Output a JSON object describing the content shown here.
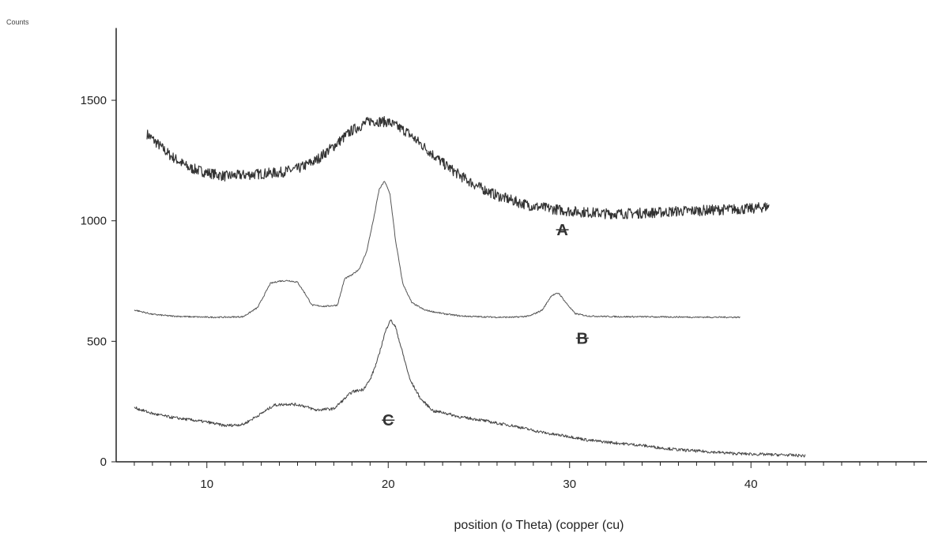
{
  "chart_data": {
    "type": "line",
    "title": "",
    "ylabel": "Counts",
    "xlabel": "position (o Theta) (copper (cu)",
    "xlim": [
      5,
      50
    ],
    "ylim": [
      0,
      1800
    ],
    "x_ticks": [
      10,
      20,
      30,
      40
    ],
    "y_ticks": [
      0,
      500,
      1000,
      1500
    ],
    "grid": false,
    "legend": "none",
    "annotations": [
      {
        "text": "A",
        "x": 29.6,
        "y": 940
      },
      {
        "text": "B",
        "x": 30.7,
        "y": 490
      },
      {
        "text": "C",
        "x": 20,
        "y": 150
      }
    ],
    "series": [
      {
        "color": "#333333",
        "noise": 22,
        "x": [
          6.7,
          8,
          9,
          10,
          11,
          12,
          13,
          14,
          15,
          16,
          17,
          18,
          19,
          20,
          21,
          22,
          23,
          24,
          25,
          26,
          27,
          28,
          29,
          30,
          31,
          32,
          33,
          34,
          35,
          36,
          37,
          38,
          39,
          40,
          41
        ],
        "y": [
          1360,
          1270,
          1220,
          1200,
          1185,
          1190,
          1195,
          1200,
          1215,
          1250,
          1310,
          1375,
          1415,
          1410,
          1370,
          1305,
          1240,
          1185,
          1140,
          1105,
          1080,
          1060,
          1050,
          1040,
          1035,
          1030,
          1030,
          1032,
          1035,
          1040,
          1042,
          1045,
          1048,
          1050,
          1060
        ]
      },
      {
        "color": "#555555",
        "noise": 3,
        "x": [
          6,
          7,
          8,
          9,
          10,
          11,
          12,
          12.8,
          13.5,
          14,
          14.5,
          15,
          15.4,
          15.8,
          16.5,
          17.2,
          17.6,
          18,
          18.4,
          18.8,
          19.2,
          19.5,
          19.8,
          20.1,
          20.4,
          20.8,
          21.3,
          22,
          23,
          24,
          25,
          26,
          27,
          27.8,
          28.5,
          29,
          29.4,
          29.8,
          30.3,
          31,
          32,
          33,
          34,
          35,
          36,
          37,
          38,
          39.4
        ],
        "y": [
          630,
          612,
          605,
          602,
          600,
          600,
          602,
          640,
          740,
          750,
          752,
          745,
          700,
          650,
          645,
          650,
          760,
          775,
          800,
          870,
          1010,
          1130,
          1165,
          1110,
          920,
          740,
          660,
          630,
          615,
          605,
          602,
          600,
          600,
          605,
          630,
          690,
          700,
          660,
          615,
          605,
          603,
          602,
          602,
          601,
          601,
          600,
          600,
          600
        ]
      },
      {
        "color": "#444444",
        "noise": 6,
        "x": [
          6,
          7,
          8,
          9,
          10,
          11,
          12,
          13,
          13.7,
          14.5,
          15.2,
          16,
          17,
          18,
          18.6,
          19,
          19.4,
          19.8,
          20.1,
          20.4,
          20.8,
          21.2,
          21.8,
          22.5,
          23,
          24,
          25,
          26,
          27,
          28,
          29,
          30,
          31,
          32,
          33,
          34,
          35,
          36,
          37,
          38,
          39,
          40,
          41,
          42,
          43
        ],
        "y": [
          225,
          200,
          185,
          175,
          165,
          150,
          155,
          200,
          235,
          240,
          235,
          215,
          220,
          290,
          300,
          340,
          420,
          530,
          590,
          560,
          450,
          340,
          260,
          210,
          205,
          185,
          175,
          160,
          148,
          130,
          115,
          105,
          90,
          82,
          75,
          68,
          58,
          50,
          45,
          40,
          35,
          32,
          30,
          28,
          25
        ]
      }
    ]
  }
}
